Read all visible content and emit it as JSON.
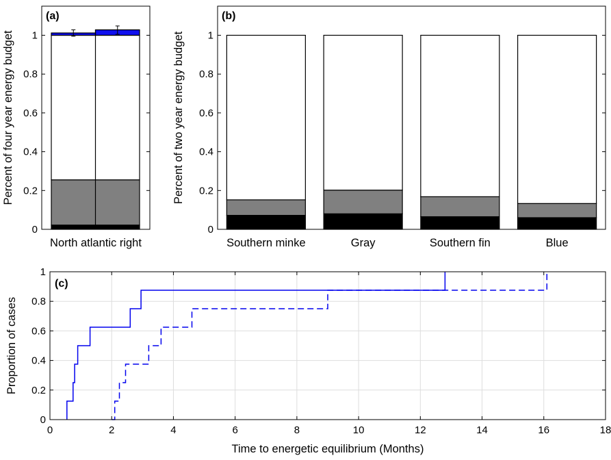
{
  "chart_data": [
    {
      "panel": "(a)",
      "type": "bar",
      "stacked": true,
      "categories": [
        "North atlantic right"
      ],
      "ylabel": "Percent of four year energy budget",
      "ylim": [
        0,
        1.15
      ],
      "yticks": [
        0,
        0.2,
        0.4,
        0.6,
        0.8,
        1
      ],
      "ytick_labels": [
        "0",
        "0.2",
        "0.4",
        "0.6",
        "0.8",
        "1"
      ],
      "grid": false,
      "bars": [
        {
          "divider": true,
          "segments": [
            {
              "from": 0,
              "to": 0.022,
              "color": "#000000"
            },
            {
              "from": 0.022,
              "to": 0.255,
              "color": "#808080"
            },
            {
              "from": 0.255,
              "to": 1.0,
              "color": "#ffffff"
            }
          ],
          "blue_segments": [
            {
              "from": 1.0,
              "to": 1.012
            },
            {
              "from": 1.0,
              "to": 1.028
            }
          ],
          "error_bars": [
            {
              "y": 1.012,
              "low": 0.995,
              "high": 1.028
            },
            {
              "y": 1.028,
              "low": 1.005,
              "high": 1.048
            }
          ]
        }
      ]
    },
    {
      "panel": "(b)",
      "type": "bar",
      "stacked": true,
      "categories": [
        "Southern minke",
        "Gray",
        "Southern fin",
        "Blue"
      ],
      "ylabel": "Percent of two year energy budget",
      "ylim": [
        0,
        1.15
      ],
      "yticks": [
        0,
        0.2,
        0.4,
        0.6,
        0.8,
        1
      ],
      "ytick_labels": [
        "0",
        "0.2",
        "0.4",
        "0.6",
        "0.8",
        "1"
      ],
      "grid": false,
      "series": [
        {
          "color": "#000000",
          "values": [
            0.072,
            0.08,
            0.065,
            0.06
          ]
        },
        {
          "color": "#808080",
          "values": [
            0.08,
            0.122,
            0.103,
            0.073
          ]
        },
        {
          "color": "#ffffff",
          "values": [
            0.848,
            0.798,
            0.832,
            0.867
          ]
        }
      ]
    },
    {
      "panel": "(c)",
      "type": "line",
      "step": true,
      "xlabel": "Time to energetic equilibrium (Months)",
      "ylabel": "Proportion of cases",
      "xlim": [
        0,
        18
      ],
      "ylim": [
        0,
        1
      ],
      "xticks": [
        0,
        2,
        4,
        6,
        8,
        10,
        12,
        14,
        16,
        18
      ],
      "xtick_labels": [
        "0",
        "2",
        "4",
        "6",
        "8",
        "10",
        "12",
        "14",
        "16",
        "18"
      ],
      "yticks": [
        0,
        0.2,
        0.4,
        0.6,
        0.8,
        1
      ],
      "ytick_labels": [
        "0",
        "0.2",
        "0.4",
        "0.6",
        "0.8",
        "1"
      ],
      "grid": true,
      "series": [
        {
          "style": "solid",
          "color": "#0000ee",
          "x": [
            0.55,
            0.75,
            0.8,
            0.9,
            1.3,
            2.6,
            2.95,
            12.8
          ],
          "y": [
            0.125,
            0.25,
            0.375,
            0.5,
            0.625,
            0.75,
            0.875,
            1.0
          ]
        },
        {
          "style": "dashed",
          "color": "#0000ee",
          "x": [
            2.0,
            2.1,
            2.25,
            2.45,
            3.2,
            3.6,
            4.6,
            9.0,
            16.1
          ],
          "y": [
            0.0,
            0.125,
            0.25,
            0.375,
            0.5,
            0.625,
            0.75,
            0.875,
            1.0
          ]
        }
      ]
    }
  ]
}
